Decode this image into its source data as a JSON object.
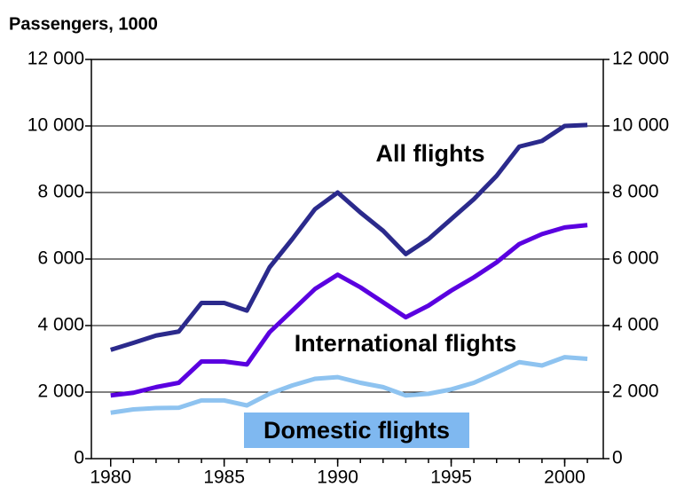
{
  "chart_data": {
    "type": "line",
    "title": "Passengers, 1000",
    "x": [
      1980,
      1981,
      1982,
      1983,
      1984,
      1985,
      1986,
      1987,
      1988,
      1989,
      1990,
      1991,
      1992,
      1993,
      1994,
      1995,
      1996,
      1997,
      1998,
      1999,
      2000,
      2001
    ],
    "series": [
      {
        "name": "All flights",
        "color": "#2b2a8c",
        "values": [
          3270,
          3480,
          3700,
          3820,
          4680,
          4680,
          4450,
          5750,
          6600,
          7500,
          8000,
          7400,
          6850,
          6150,
          6600,
          7200,
          7800,
          8500,
          9380,
          9550,
          10000,
          10030
        ]
      },
      {
        "name": "International flights",
        "color": "#5a00e0",
        "values": [
          1900,
          1980,
          2150,
          2280,
          2920,
          2920,
          2830,
          3800,
          4450,
          5100,
          5530,
          5150,
          4700,
          4250,
          4600,
          5050,
          5450,
          5900,
          6450,
          6750,
          6950,
          7020
        ]
      },
      {
        "name": "Domestic flights",
        "color": "#8ec3f0",
        "values": [
          1380,
          1480,
          1520,
          1530,
          1750,
          1750,
          1600,
          1950,
          2200,
          2400,
          2450,
          2280,
          2150,
          1900,
          1950,
          2080,
          2280,
          2580,
          2900,
          2800,
          3050,
          3000
        ]
      }
    ],
    "xlim": [
      1979.15,
      2001.7
    ],
    "xticks": [
      1980,
      1985,
      1990,
      1995,
      2000
    ],
    "ylim": [
      0,
      12000
    ],
    "yticks": [
      0,
      {
        "value": 2000,
        "label": "2 000"
      },
      {
        "value": 4000,
        "label": "4 000"
      },
      {
        "value": 6000,
        "label": "6 000"
      },
      {
        "value": 8000,
        "label": "8 000"
      },
      {
        "value": 10000,
        "label": "10 000"
      },
      {
        "value": 12000,
        "label": "12 000"
      }
    ],
    "y2lim": [
      0,
      12000
    ],
    "y2ticks": [
      0,
      {
        "value": 2000,
        "label": "2 000"
      },
      {
        "value": 4000,
        "label": "4 000"
      },
      {
        "value": 6000,
        "label": "6 000"
      },
      {
        "value": 8000,
        "label": "8 000"
      },
      {
        "value": 10000,
        "label": "10 000"
      },
      {
        "value": 12000,
        "label": "12 000"
      }
    ],
    "grid": true
  }
}
